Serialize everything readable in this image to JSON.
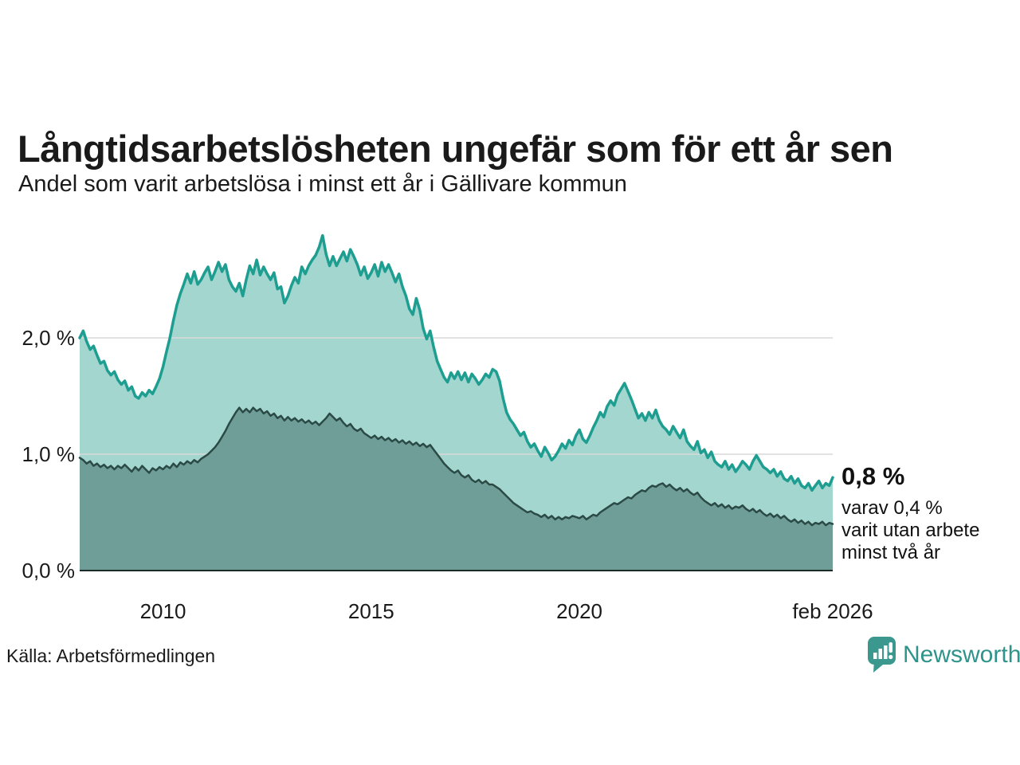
{
  "header": {
    "title": "Långtidsarbetslösheten ungefär som för ett år sen",
    "subtitle": "Andel som varit arbetslösa i minst ett år i Gällivare kommun"
  },
  "annotation": {
    "value_label": "0,8 %",
    "detail_lines": [
      "varav 0,4 %",
      "varit utan arbete",
      "minst två år"
    ]
  },
  "footer": {
    "source": "Källa: Arbetsförmedlingen",
    "brand": "Newsworthy"
  },
  "colors": {
    "line_total": "#1d9e90",
    "fill_total": "#a3d6cf",
    "line_two_years": "#2b4a45",
    "fill_two_years": "#6f9e99",
    "gridline": "#d9d9d9",
    "baseline": "#1c2b28",
    "brand_teal": "#2e948b",
    "pin_icon": "#3a988f"
  },
  "chart_data": {
    "type": "area",
    "title": "Långtidsarbetslösheten ungefär som för ett år sen",
    "subtitle": "Andel som varit arbetslösa i minst ett år i Gällivare kommun",
    "x_unit": "decimal_year_monthly",
    "x_domain": [
      2008.0,
      2026.083
    ],
    "ylim": [
      0,
      3.0
    ],
    "grid": "horizontal-only",
    "legend": "none, end-of-line annotation instead",
    "overlay_note": "Series overlap (2-year share is subset of 1-year share), not stacked",
    "y_gridlines": [
      {
        "value": 2.0,
        "label": "2,0 %"
      },
      {
        "value": 1.0,
        "label": "1,0 %"
      },
      {
        "value": 0.0,
        "label": "0,0 %"
      }
    ],
    "x_ticks": [
      {
        "value": 2010,
        "label": "2010"
      },
      {
        "value": 2015,
        "label": "2015"
      },
      {
        "value": 2020,
        "label": "2020"
      },
      {
        "value": 2026.083,
        "label": "feb 2026"
      }
    ],
    "series": [
      {
        "name": "arbetslosa-minst-ett-ar",
        "label": "Andel arbetslösa minst ett år",
        "end_value_label": "0,8 %",
        "start": 2008.0,
        "step_months": 1,
        "values": [
          2.0,
          2.06,
          1.97,
          1.9,
          1.93,
          1.85,
          1.78,
          1.8,
          1.72,
          1.68,
          1.71,
          1.64,
          1.6,
          1.63,
          1.55,
          1.58,
          1.5,
          1.48,
          1.53,
          1.5,
          1.55,
          1.52,
          1.58,
          1.65,
          1.75,
          1.88,
          2.0,
          2.15,
          2.28,
          2.38,
          2.46,
          2.55,
          2.47,
          2.57,
          2.46,
          2.5,
          2.56,
          2.61,
          2.5,
          2.57,
          2.65,
          2.57,
          2.63,
          2.5,
          2.44,
          2.4,
          2.47,
          2.36,
          2.5,
          2.62,
          2.55,
          2.67,
          2.54,
          2.61,
          2.55,
          2.5,
          2.56,
          2.42,
          2.44,
          2.3,
          2.36,
          2.45,
          2.52,
          2.47,
          2.61,
          2.55,
          2.62,
          2.67,
          2.71,
          2.78,
          2.88,
          2.72,
          2.62,
          2.7,
          2.62,
          2.68,
          2.74,
          2.66,
          2.76,
          2.7,
          2.63,
          2.54,
          2.61,
          2.51,
          2.56,
          2.63,
          2.53,
          2.65,
          2.57,
          2.63,
          2.56,
          2.48,
          2.55,
          2.44,
          2.36,
          2.25,
          2.2,
          2.34,
          2.24,
          2.08,
          1.99,
          2.06,
          1.92,
          1.8,
          1.73,
          1.66,
          1.62,
          1.7,
          1.65,
          1.71,
          1.64,
          1.7,
          1.62,
          1.69,
          1.65,
          1.6,
          1.64,
          1.69,
          1.66,
          1.73,
          1.71,
          1.63,
          1.48,
          1.36,
          1.3,
          1.26,
          1.21,
          1.16,
          1.19,
          1.11,
          1.06,
          1.09,
          1.03,
          0.98,
          1.06,
          1.01,
          0.95,
          0.98,
          1.03,
          1.09,
          1.05,
          1.12,
          1.08,
          1.16,
          1.21,
          1.13,
          1.1,
          1.16,
          1.23,
          1.29,
          1.36,
          1.32,
          1.41,
          1.46,
          1.42,
          1.51,
          1.56,
          1.61,
          1.54,
          1.47,
          1.39,
          1.31,
          1.35,
          1.29,
          1.36,
          1.31,
          1.38,
          1.29,
          1.24,
          1.21,
          1.17,
          1.24,
          1.19,
          1.14,
          1.21,
          1.11,
          1.07,
          1.04,
          1.11,
          1.01,
          1.04,
          0.97,
          1.02,
          0.94,
          0.91,
          0.89,
          0.94,
          0.87,
          0.91,
          0.85,
          0.89,
          0.94,
          0.91,
          0.87,
          0.94,
          0.99,
          0.94,
          0.89,
          0.87,
          0.84,
          0.87,
          0.81,
          0.85,
          0.79,
          0.77,
          0.81,
          0.75,
          0.79,
          0.73,
          0.71,
          0.75,
          0.69,
          0.73,
          0.77,
          0.71,
          0.75,
          0.73,
          0.8
        ]
      },
      {
        "name": "arbetslosa-minst-tva-ar",
        "label": "varav utan arbete minst två år",
        "end_value_label": "0,4 %",
        "start": 2008.0,
        "step_months": 1,
        "values": [
          0.97,
          0.95,
          0.92,
          0.94,
          0.9,
          0.92,
          0.89,
          0.91,
          0.88,
          0.9,
          0.87,
          0.9,
          0.88,
          0.91,
          0.88,
          0.85,
          0.89,
          0.86,
          0.9,
          0.87,
          0.84,
          0.88,
          0.86,
          0.89,
          0.87,
          0.9,
          0.88,
          0.92,
          0.89,
          0.93,
          0.91,
          0.94,
          0.92,
          0.95,
          0.93,
          0.96,
          0.98,
          1.0,
          1.03,
          1.06,
          1.1,
          1.15,
          1.2,
          1.26,
          1.31,
          1.36,
          1.4,
          1.36,
          1.39,
          1.36,
          1.4,
          1.37,
          1.39,
          1.35,
          1.37,
          1.33,
          1.35,
          1.31,
          1.33,
          1.29,
          1.32,
          1.29,
          1.31,
          1.28,
          1.3,
          1.27,
          1.29,
          1.26,
          1.28,
          1.25,
          1.28,
          1.31,
          1.35,
          1.32,
          1.29,
          1.31,
          1.27,
          1.24,
          1.26,
          1.22,
          1.2,
          1.22,
          1.18,
          1.16,
          1.14,
          1.16,
          1.13,
          1.15,
          1.12,
          1.14,
          1.11,
          1.13,
          1.1,
          1.12,
          1.09,
          1.11,
          1.08,
          1.1,
          1.07,
          1.09,
          1.06,
          1.08,
          1.04,
          1.0,
          0.96,
          0.92,
          0.89,
          0.86,
          0.84,
          0.86,
          0.82,
          0.8,
          0.82,
          0.78,
          0.76,
          0.78,
          0.75,
          0.77,
          0.74,
          0.74,
          0.72,
          0.7,
          0.67,
          0.64,
          0.61,
          0.58,
          0.56,
          0.54,
          0.52,
          0.5,
          0.51,
          0.49,
          0.48,
          0.46,
          0.48,
          0.45,
          0.47,
          0.44,
          0.46,
          0.44,
          0.46,
          0.45,
          0.47,
          0.46,
          0.45,
          0.47,
          0.44,
          0.46,
          0.48,
          0.47,
          0.5,
          0.52,
          0.54,
          0.56,
          0.58,
          0.57,
          0.59,
          0.61,
          0.63,
          0.62,
          0.65,
          0.67,
          0.69,
          0.68,
          0.71,
          0.73,
          0.72,
          0.74,
          0.75,
          0.72,
          0.74,
          0.71,
          0.69,
          0.71,
          0.68,
          0.7,
          0.67,
          0.65,
          0.67,
          0.63,
          0.6,
          0.58,
          0.56,
          0.58,
          0.55,
          0.57,
          0.54,
          0.56,
          0.53,
          0.55,
          0.54,
          0.56,
          0.53,
          0.51,
          0.53,
          0.5,
          0.52,
          0.49,
          0.47,
          0.49,
          0.46,
          0.48,
          0.45,
          0.47,
          0.44,
          0.42,
          0.44,
          0.41,
          0.43,
          0.4,
          0.42,
          0.39,
          0.41,
          0.4,
          0.42,
          0.39,
          0.41,
          0.4
        ]
      }
    ]
  }
}
